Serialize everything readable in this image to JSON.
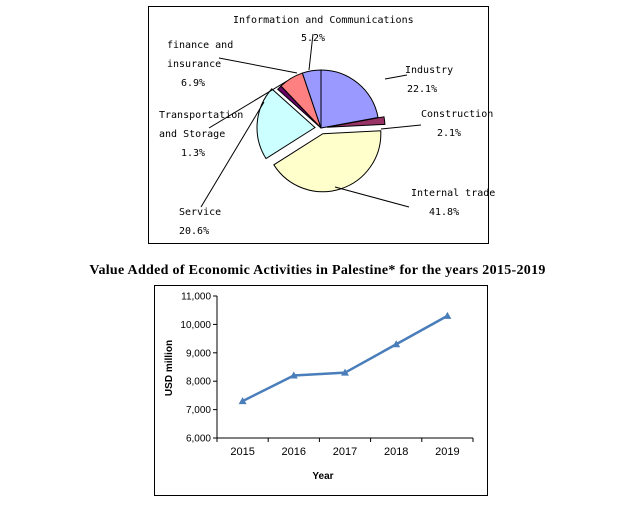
{
  "charts_title": "Value Added of Economic Activities in Palestine* for the years 2015-2019",
  "chart_data": [
    {
      "type": "pie",
      "slices": [
        {
          "label": "Industry",
          "value": 22.1,
          "display": "22.1%",
          "color": "#9999ff"
        },
        {
          "label": "Construction",
          "value": 2.1,
          "display": "2.1%",
          "color": "#993366"
        },
        {
          "label": "Internal trade",
          "value": 41.8,
          "display": "41.8%",
          "color": "#ffffcc"
        },
        {
          "label": "Service",
          "value": 20.6,
          "display": "20.6%",
          "color": "#ccffff"
        },
        {
          "label": "Transportation and Storage",
          "label_lines": [
            "Transportation",
            "and Storage"
          ],
          "value": 1.3,
          "display": "1.3%",
          "color": "#660066"
        },
        {
          "label": "finance and insurance",
          "label_lines": [
            "finance and",
            "insurance"
          ],
          "value": 6.9,
          "display": "6.9%",
          "color": "#ff8080"
        },
        {
          "label": "Information and Communications",
          "value": 5.2,
          "display": "5.2%",
          "color": "#9999ff"
        }
      ]
    },
    {
      "type": "line",
      "title": "Value Added of Economic Activities in Palestine* for the years 2015-2019",
      "xlabel": "Year",
      "ylabel": "USD million",
      "x": [
        "2015",
        "2016",
        "2017",
        "2018",
        "2019"
      ],
      "series": [
        {
          "values": [
            7300,
            8200,
            8300,
            9300,
            10300
          ],
          "color": "#4a7ebb"
        }
      ],
      "ylim": [
        6000,
        11000
      ],
      "yticks": [
        6000,
        7000,
        8000,
        9000,
        10000,
        11000
      ],
      "ytick_labels": [
        "6,000",
        "7,000",
        "8,000",
        "9,000",
        "10,000",
        "11,000"
      ],
      "grid": false,
      "legend": "none"
    }
  ]
}
